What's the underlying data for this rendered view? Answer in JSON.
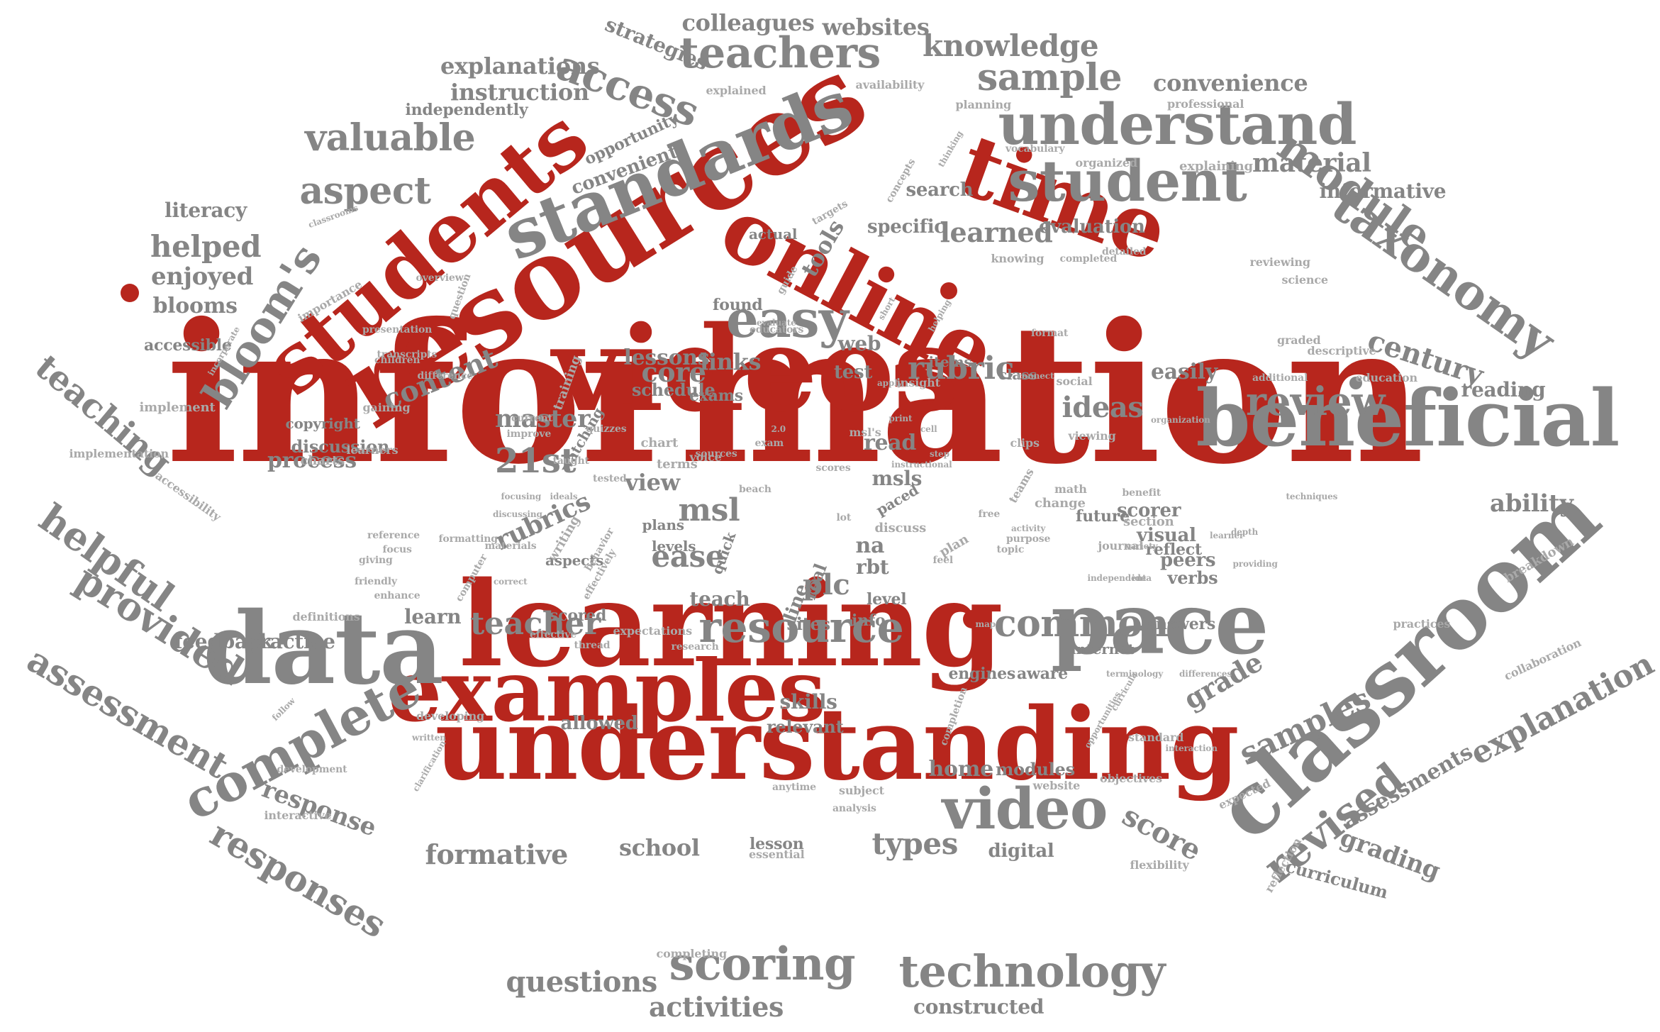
{
  "colors": {
    "primary": "#b7261d",
    "secondary": "#858585",
    "minor": "#a9a9a9",
    "background": "#ffffff"
  },
  "words": [
    {
      "text": "information",
      "c": "red"
    },
    {
      "text": "learning",
      "c": "red"
    },
    {
      "text": "understanding",
      "c": "red"
    },
    {
      "text": "examples",
      "c": "red"
    },
    {
      "text": "videos",
      "c": "red"
    },
    {
      "text": "resources",
      "c": "red"
    },
    {
      "text": "students",
      "c": "red"
    },
    {
      "text": "online",
      "c": "red"
    },
    {
      "text": "time",
      "c": "red"
    },
    {
      "text": "data",
      "c": "gray"
    },
    {
      "text": "pace",
      "c": "gray"
    },
    {
      "text": "classroom",
      "c": "gray"
    },
    {
      "text": "beneficial",
      "c": "gray"
    },
    {
      "text": "standards",
      "c": "gray"
    },
    {
      "text": "understand",
      "c": "gray"
    },
    {
      "text": "student",
      "c": "gray"
    },
    {
      "text": "module",
      "c": "gray"
    },
    {
      "text": "taxonomy",
      "c": "gray"
    },
    {
      "text": "teachers",
      "c": "gray"
    },
    {
      "text": "access",
      "c": "gray"
    },
    {
      "text": "bloom's",
      "c": "gray"
    },
    {
      "text": "complete",
      "c": "gray"
    },
    {
      "text": "video",
      "c": "gray"
    },
    {
      "text": "resource",
      "c": "gray"
    },
    {
      "text": "common",
      "c": "gray"
    },
    {
      "text": "scoring",
      "c": "gray"
    },
    {
      "text": "technology",
      "c": "gray"
    },
    {
      "text": "easy",
      "c": "gray"
    },
    {
      "text": "helpful",
      "c": "gray"
    },
    {
      "text": "provided",
      "c": "gray"
    },
    {
      "text": "assessment",
      "c": "gray"
    },
    {
      "text": "teaching",
      "c": "gray"
    },
    {
      "text": "responses",
      "c": "gray"
    },
    {
      "text": "revised",
      "c": "gray"
    },
    {
      "text": "explanation",
      "c": "gray"
    },
    {
      "text": "samples",
      "c": "gray"
    },
    {
      "text": "sample",
      "c": "gray"
    },
    {
      "text": "valuable",
      "c": "gray"
    },
    {
      "text": "aspect",
      "c": "gray"
    },
    {
      "text": "review",
      "c": "gray"
    },
    {
      "text": "century",
      "c": "gray"
    },
    {
      "text": "rubric",
      "c": "gray"
    },
    {
      "text": "knowledge",
      "c": "gray"
    },
    {
      "text": "colleagues",
      "c": "gray"
    },
    {
      "text": "websites",
      "c": "gray"
    },
    {
      "text": "strategies",
      "c": "gray"
    },
    {
      "text": "explanations",
      "c": "gray"
    },
    {
      "text": "instruction",
      "c": "gray"
    },
    {
      "text": "independently",
      "c": "gray"
    },
    {
      "text": "convenience",
      "c": "gray"
    },
    {
      "text": "material",
      "c": "gray"
    },
    {
      "text": "informative",
      "c": "gray"
    },
    {
      "text": "literacy",
      "c": "gray"
    },
    {
      "text": "helped",
      "c": "gray"
    },
    {
      "text": "enjoyed",
      "c": "gray"
    },
    {
      "text": "blooms",
      "c": "gray"
    },
    {
      "text": "accessible",
      "c": "gray"
    },
    {
      "text": "content",
      "c": "gray"
    },
    {
      "text": "learned",
      "c": "gray"
    },
    {
      "text": "specific",
      "c": "gray"
    },
    {
      "text": "search",
      "c": "gray"
    },
    {
      "text": "evaluation",
      "c": "gray"
    },
    {
      "text": "convenient",
      "c": "gray"
    },
    {
      "text": "opportunity",
      "c": "gray"
    },
    {
      "text": "explained",
      "c": "gray"
    },
    {
      "text": "availability",
      "c": "gray"
    },
    {
      "text": "tools",
      "c": "gray"
    },
    {
      "text": "lessons",
      "c": "gray"
    },
    {
      "text": "core",
      "c": "gray"
    },
    {
      "text": "links",
      "c": "gray"
    },
    {
      "text": "master",
      "c": "gray"
    },
    {
      "text": "21st",
      "c": "gray"
    },
    {
      "text": "process",
      "c": "gray"
    },
    {
      "text": "discussion",
      "c": "gray"
    },
    {
      "text": "copyright",
      "c": "gray"
    },
    {
      "text": "ideas",
      "c": "gray"
    },
    {
      "text": "read",
      "c": "gray"
    },
    {
      "text": "msls",
      "c": "gray"
    },
    {
      "text": "test",
      "c": "gray"
    },
    {
      "text": "web",
      "c": "gray"
    },
    {
      "text": "easily",
      "c": "gray"
    },
    {
      "text": "reading",
      "c": "gray"
    },
    {
      "text": "ability",
      "c": "gray"
    },
    {
      "text": "breakdown",
      "c": "gray"
    },
    {
      "text": "msl",
      "c": "gray"
    },
    {
      "text": "ease",
      "c": "gray"
    },
    {
      "text": "rubrics",
      "c": "gray"
    },
    {
      "text": "view",
      "c": "gray"
    },
    {
      "text": "teacher",
      "c": "gray"
    },
    {
      "text": "scored",
      "c": "gray"
    },
    {
      "text": "learn",
      "c": "gray"
    },
    {
      "text": "feedback",
      "c": "gray"
    },
    {
      "text": "practice",
      "c": "gray"
    },
    {
      "text": "skills",
      "c": "gray"
    },
    {
      "text": "relevant",
      "c": "gray"
    },
    {
      "text": "allowed",
      "c": "gray"
    },
    {
      "text": "home",
      "c": "gray"
    },
    {
      "text": "modules",
      "c": "gray"
    },
    {
      "text": "school",
      "c": "gray"
    },
    {
      "text": "formative",
      "c": "gray"
    },
    {
      "text": "response",
      "c": "gray"
    },
    {
      "text": "types",
      "c": "gray"
    },
    {
      "text": "digital",
      "c": "gray"
    },
    {
      "text": "lesson",
      "c": "gray"
    },
    {
      "text": "score",
      "c": "gray"
    },
    {
      "text": "grading",
      "c": "gray"
    },
    {
      "text": "assessments",
      "c": "gray"
    },
    {
      "text": "curriculum",
      "c": "gray"
    },
    {
      "text": "questions",
      "c": "gray"
    },
    {
      "text": "activities",
      "c": "gray"
    },
    {
      "text": "constructed",
      "c": "gray"
    },
    {
      "text": "grade",
      "c": "gray"
    },
    {
      "text": "collaboration",
      "c": "gray"
    },
    {
      "text": "plc",
      "c": "gray"
    },
    {
      "text": "na",
      "c": "gray"
    },
    {
      "text": "rbt",
      "c": "gray"
    },
    {
      "text": "info",
      "c": "gray"
    },
    {
      "text": "level",
      "c": "gray"
    },
    {
      "text": "line",
      "c": "gray"
    },
    {
      "text": "real",
      "c": "gray"
    },
    {
      "text": "sites",
      "c": "gray"
    },
    {
      "text": "teach",
      "c": "gray"
    },
    {
      "text": "scorer",
      "c": "gray"
    },
    {
      "text": "peers",
      "c": "gray"
    },
    {
      "text": "verbs",
      "c": "gray"
    },
    {
      "text": "visual",
      "c": "gray"
    },
    {
      "text": "reflect",
      "c": "gray"
    },
    {
      "text": "answers",
      "c": "gray"
    },
    {
      "text": "internet",
      "c": "gray"
    },
    {
      "text": "engines",
      "c": "gray"
    },
    {
      "text": "aware",
      "c": "gray"
    },
    {
      "text": "items",
      "c": "gray"
    },
    {
      "text": "class",
      "c": "gray"
    },
    {
      "text": "schedule",
      "c": "gray"
    },
    {
      "text": "exams",
      "c": "gray"
    },
    {
      "text": "planning",
      "c": "gray"
    },
    {
      "text": "professional",
      "c": "gray"
    },
    {
      "text": "explaining",
      "c": "gray"
    },
    {
      "text": "organized",
      "c": "gray"
    },
    {
      "text": "importance",
      "c": "gray"
    },
    {
      "text": "implement",
      "c": "gray"
    },
    {
      "text": "implementation",
      "c": "gray"
    },
    {
      "text": "accessibility",
      "c": "gray"
    },
    {
      "text": "gaining",
      "c": "gray"
    },
    {
      "text": "charts",
      "c": "gray"
    },
    {
      "text": "training",
      "c": "gray"
    },
    {
      "text": "found",
      "c": "gray"
    },
    {
      "text": "actual",
      "c": "gray"
    },
    {
      "text": "knowing",
      "c": "gray"
    },
    {
      "text": "completed",
      "c": "gray"
    },
    {
      "text": "reviewing",
      "c": "gray"
    },
    {
      "text": "science",
      "c": "gray"
    },
    {
      "text": "detailed",
      "c": "gray"
    },
    {
      "text": "graded",
      "c": "gray"
    },
    {
      "text": "descriptive",
      "c": "gray"
    },
    {
      "text": "additional",
      "c": "gray"
    },
    {
      "text": "education",
      "c": "gray"
    },
    {
      "text": "future",
      "c": "gray"
    },
    {
      "text": "section",
      "c": "gray"
    },
    {
      "text": "journal",
      "c": "gray"
    },
    {
      "text": "standard",
      "c": "gray"
    },
    {
      "text": "objectives",
      "c": "gray"
    },
    {
      "text": "website",
      "c": "gray"
    },
    {
      "text": "subject",
      "c": "gray"
    },
    {
      "text": "essential",
      "c": "gray"
    },
    {
      "text": "expected",
      "c": "gray"
    },
    {
      "text": "reflection",
      "c": "gray"
    },
    {
      "text": "flexibility",
      "c": "gray"
    },
    {
      "text": "practices",
      "c": "gray"
    },
    {
      "text": "completing",
      "c": "gray"
    },
    {
      "text": "interactive",
      "c": "gray"
    },
    {
      "text": "development",
      "c": "gray"
    },
    {
      "text": "developing",
      "c": "gray"
    },
    {
      "text": "definitions",
      "c": "gray"
    },
    {
      "text": "expectations",
      "c": "gray"
    },
    {
      "text": "learners",
      "c": "gray"
    },
    {
      "text": "watching",
      "c": "gray"
    },
    {
      "text": "writing",
      "c": "gray"
    },
    {
      "text": "aspects",
      "c": "gray"
    },
    {
      "text": "plans",
      "c": "gray"
    },
    {
      "text": "levels",
      "c": "gray"
    },
    {
      "text": "quick",
      "c": "gray"
    },
    {
      "text": "paced",
      "c": "gray"
    },
    {
      "text": "discuss",
      "c": "gray"
    },
    {
      "text": "plan",
      "c": "gray"
    },
    {
      "text": "change",
      "c": "gray"
    },
    {
      "text": "math",
      "c": "gray"
    },
    {
      "text": "insight",
      "c": "gray"
    },
    {
      "text": "clips",
      "c": "gray"
    },
    {
      "text": "chart",
      "c": "gray"
    },
    {
      "text": "terms",
      "c": "gray"
    },
    {
      "text": "voice",
      "c": "gray"
    },
    {
      "text": "msl's",
      "c": "gray"
    },
    {
      "text": "scores",
      "c": "gray"
    },
    {
      "text": "lot",
      "c": "gray"
    },
    {
      "text": "free",
      "c": "gray"
    },
    {
      "text": "teams",
      "c": "gray"
    },
    {
      "text": "social",
      "c": "gray"
    },
    {
      "text": "viewing",
      "c": "gray"
    },
    {
      "text": "format",
      "c": "gray"
    },
    {
      "text": "concepts",
      "c": "gray"
    },
    {
      "text": "thinking",
      "c": "gray"
    },
    {
      "text": "vocabulary",
      "c": "gray"
    },
    {
      "text": "classrooms",
      "c": "gray"
    },
    {
      "text": "incorporate",
      "c": "gray"
    },
    {
      "text": "presentation",
      "c": "gray"
    },
    {
      "text": "overview",
      "c": "gray"
    },
    {
      "text": "question",
      "c": "gray"
    },
    {
      "text": "children",
      "c": "gray"
    },
    {
      "text": "transcripts",
      "c": "gray"
    },
    {
      "text": "difference",
      "c": "gray"
    },
    {
      "text": "current",
      "c": "gray"
    },
    {
      "text": "improve",
      "c": "gray"
    },
    {
      "text": "quizzes",
      "c": "gray"
    },
    {
      "text": "taught",
      "c": "gray"
    },
    {
      "text": "tested",
      "c": "gray"
    },
    {
      "text": "giving",
      "c": "gray"
    },
    {
      "text": "focus",
      "c": "gray"
    },
    {
      "text": "reference",
      "c": "gray"
    },
    {
      "text": "friendly",
      "c": "gray"
    },
    {
      "text": "enhance",
      "c": "gray"
    },
    {
      "text": "formatting",
      "c": "gray"
    },
    {
      "text": "computer",
      "c": "gray"
    },
    {
      "text": "behavior",
      "c": "gray"
    },
    {
      "text": "effectively",
      "c": "gray"
    },
    {
      "text": "materials",
      "c": "gray"
    },
    {
      "text": "effective",
      "c": "gray"
    },
    {
      "text": "thread",
      "c": "gray"
    },
    {
      "text": "research",
      "c": "gray"
    },
    {
      "text": "follow",
      "c": "gray"
    },
    {
      "text": "written",
      "c": "gray"
    },
    {
      "text": "clarification",
      "c": "gray"
    },
    {
      "text": "terminology",
      "c": "gray"
    },
    {
      "text": "differences",
      "c": "gray"
    },
    {
      "text": "interaction",
      "c": "gray"
    },
    {
      "text": "opportunities",
      "c": "gray"
    },
    {
      "text": "completion",
      "c": "gray"
    },
    {
      "text": "benefit",
      "c": "gray"
    },
    {
      "text": "variety",
      "c": "gray"
    },
    {
      "text": "learner",
      "c": "gray"
    },
    {
      "text": "providing",
      "c": "gray"
    },
    {
      "text": "techniques",
      "c": "gray"
    },
    {
      "text": "activity",
      "c": "gray"
    },
    {
      "text": "purpose",
      "c": "gray"
    },
    {
      "text": "topic",
      "c": "gray"
    },
    {
      "text": "feel",
      "c": "gray"
    },
    {
      "text": "apply",
      "c": "gray"
    },
    {
      "text": "guide",
      "c": "gray"
    },
    {
      "text": "targets",
      "c": "gray"
    },
    {
      "text": "helping",
      "c": "gray"
    },
    {
      "text": "evaluate",
      "c": "gray"
    },
    {
      "text": "educators",
      "c": "gray"
    },
    {
      "text": "short",
      "c": "gray"
    },
    {
      "text": "print",
      "c": "gray"
    },
    {
      "text": "step",
      "c": "gray"
    },
    {
      "text": "instructional",
      "c": "gray"
    },
    {
      "text": "sources",
      "c": "gray"
    },
    {
      "text": "depth",
      "c": "gray"
    },
    {
      "text": "analysis",
      "c": "gray"
    },
    {
      "text": "anytime",
      "c": "gray"
    },
    {
      "text": "curricula",
      "c": "gray"
    },
    {
      "text": "independent",
      "c": "gray"
    },
    {
      "text": "idea",
      "c": "gray"
    },
    {
      "text": "ideals",
      "c": "gray"
    },
    {
      "text": "beach",
      "c": "gray"
    },
    {
      "text": "exam",
      "c": "gray"
    },
    {
      "text": "2.0",
      "c": "gray"
    },
    {
      "text": "cell",
      "c": "gray"
    },
    {
      "text": "connect",
      "c": "gray"
    },
    {
      "text": "organization",
      "c": "gray"
    },
    {
      "text": "correct",
      "c": "gray"
    },
    {
      "text": "focusing",
      "c": "gray"
    },
    {
      "text": "discussing",
      "c": "gray"
    },
    {
      "text": "map",
      "c": "gray"
    }
  ]
}
